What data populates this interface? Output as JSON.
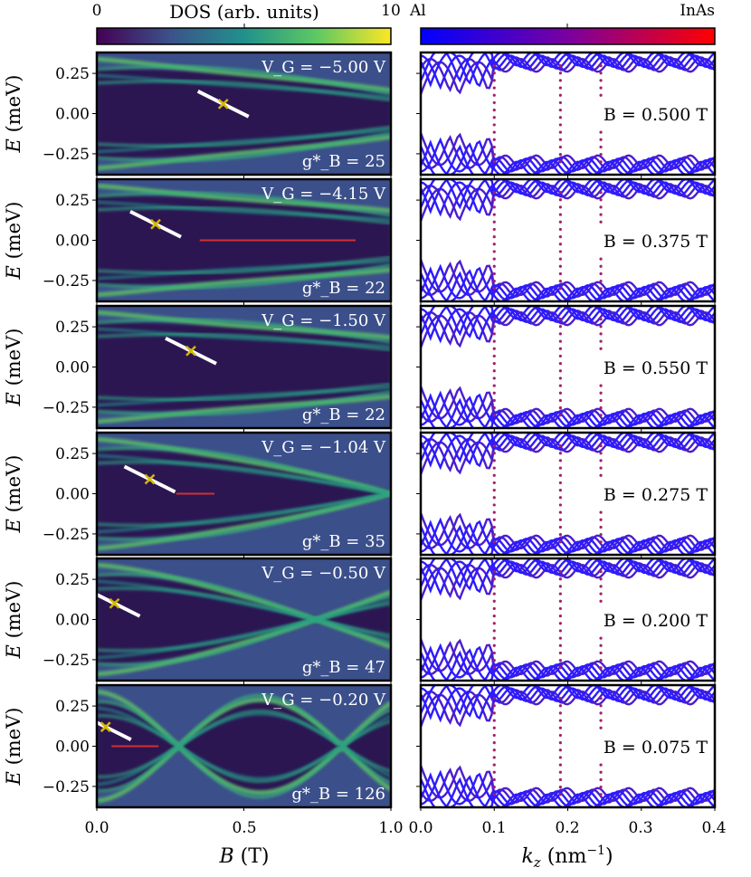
{
  "colorbars": {
    "dos": {
      "label": "DOS (arb. units)",
      "min_label": "0",
      "max_label": "10",
      "range": [
        0,
        10
      ],
      "colormap": "viridis"
    },
    "composition": {
      "left_label": "Al",
      "right_label": "InAs",
      "colors": [
        "#0000ff",
        "#7a00a0",
        "#ff0000"
      ]
    }
  },
  "axes": {
    "left_xlabel": "B (T)",
    "right_xlabel": "k_z (nm^-1)",
    "ylabel": "E (meV)",
    "left_xticks": [
      "0.0",
      "0.5",
      "1.0"
    ],
    "right_xticks": [
      "0.0",
      "0.1",
      "0.2",
      "0.3",
      "0.4"
    ],
    "yticks": [
      "0.25",
      "0.00",
      "−0.25"
    ],
    "left_xlim": [
      0,
      1
    ],
    "right_xlim": [
      0,
      0.4
    ],
    "ylim": [
      -0.38,
      0.38
    ]
  },
  "chart_data": [
    {
      "type": "heatmap",
      "panel": "DOS row 1",
      "VG_label": "V_G = −5.00 V",
      "g_label": "g*_B = 25",
      "VG": -5.0,
      "g": 25,
      "crossing_B": 0.43,
      "crossing_E": 0.06
    },
    {
      "type": "heatmap",
      "panel": "DOS row 2",
      "VG_label": "V_G = −4.15 V",
      "g_label": "g*_B = 22",
      "VG": -4.15,
      "g": 22,
      "crossing_B": 0.2,
      "crossing_E": 0.1,
      "red_line_B": [
        0.35,
        0.88
      ]
    },
    {
      "type": "heatmap",
      "panel": "DOS row 3",
      "VG_label": "V_G = −1.50 V",
      "g_label": "g*_B = 22",
      "VG": -1.5,
      "g": 22,
      "crossing_B": 0.32,
      "crossing_E": 0.1
    },
    {
      "type": "heatmap",
      "panel": "DOS row 4",
      "VG_label": "V_G = −1.04 V",
      "g_label": "g*_B = 35",
      "VG": -1.04,
      "g": 35,
      "crossing_B": 0.18,
      "crossing_E": 0.09,
      "red_line_B": [
        0.27,
        0.4
      ]
    },
    {
      "type": "heatmap",
      "panel": "DOS row 5",
      "VG_label": "V_G = −0.50 V",
      "g_label": "g*_B = 47",
      "VG": -0.5,
      "g": 47,
      "crossing_B": 0.06,
      "crossing_E": 0.1
    },
    {
      "type": "heatmap",
      "panel": "DOS row 6",
      "VG_label": "V_G = −0.20 V",
      "g_label": "g*_B = 126",
      "VG": -0.2,
      "g": 126,
      "crossing_B": 0.03,
      "crossing_E": 0.12,
      "red_line_B": [
        0.05,
        0.21
      ]
    },
    {
      "type": "scatter",
      "panel": "band row 1",
      "B_label": "B = 0.500 T",
      "B": 0.5
    },
    {
      "type": "scatter",
      "panel": "band row 2",
      "B_label": "B = 0.375 T",
      "B": 0.375
    },
    {
      "type": "scatter",
      "panel": "band row 3",
      "B_label": "B = 0.550 T",
      "B": 0.55
    },
    {
      "type": "scatter",
      "panel": "band row 4",
      "B_label": "B = 0.275 T",
      "B": 0.275
    },
    {
      "type": "scatter",
      "panel": "band row 5",
      "B_label": "B = 0.200 T",
      "B": 0.2
    },
    {
      "type": "scatter",
      "panel": "band row 6",
      "B_label": "B = 0.075 T",
      "B": 0.075
    }
  ]
}
